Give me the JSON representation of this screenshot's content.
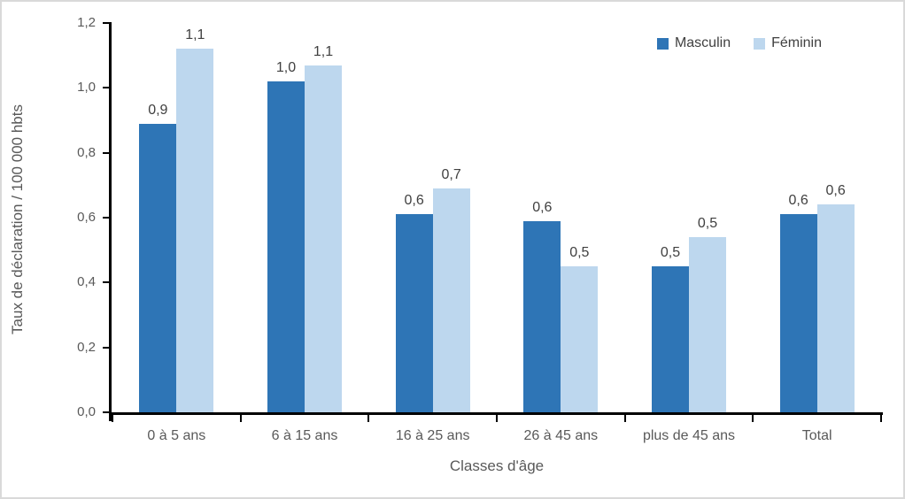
{
  "chart_data": {
    "type": "bar",
    "title": "",
    "xlabel": "Classes d'âge",
    "ylabel": "Taux de déclaration / 100 000 hbts",
    "categories": [
      "0 à 5 ans",
      "6 à 15 ans",
      "16 à 25 ans",
      "26 à 45 ans",
      "plus de 45 ans",
      "Total"
    ],
    "series": [
      {
        "name": "Masculin",
        "color": "#2E75B6",
        "values": [
          0.89,
          1.02,
          0.61,
          0.59,
          0.45,
          0.61
        ],
        "labels": [
          "0,9",
          "1,0",
          "0,6",
          "0,6",
          "0,5",
          "0,6"
        ]
      },
      {
        "name": "Féminin",
        "color": "#BDD7EE",
        "values": [
          1.12,
          1.07,
          0.69,
          0.45,
          0.54,
          0.64
        ],
        "labels": [
          "1,1",
          "1,1",
          "0,7",
          "0,5",
          "0,5",
          "0,6"
        ]
      }
    ],
    "ylim": [
      0,
      1.2
    ],
    "y_tick_step": 0.2,
    "y_tick_labels": [
      "1,2",
      "1,0",
      "0,8",
      "0,6",
      "0,4",
      "0,2",
      "0,0"
    ],
    "grid": false,
    "legend_position": "top-right",
    "decimal_separator": ","
  },
  "colors": {
    "axis_line": "#000000",
    "tick_label": "#595959",
    "data_label": "#404040",
    "frame_border": "#d9d9d9",
    "background": "#ffffff"
  }
}
